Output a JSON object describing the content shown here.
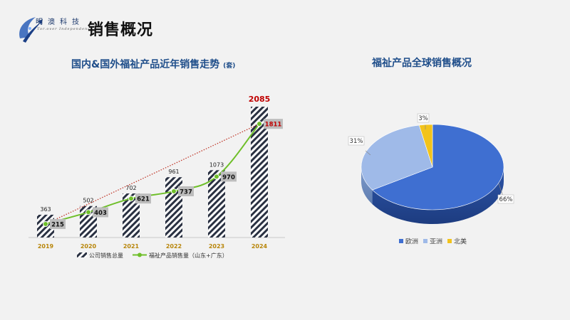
{
  "page": {
    "title": "销售概况",
    "logo": {
      "name": "明澳科技",
      "sub": "Tor.over Independence"
    }
  },
  "chart_data": [
    {
      "type": "bar",
      "title": "国内&国外福祉产品近年销售走势",
      "title_unit": "(套)",
      "categories": [
        "2019",
        "2020",
        "2021",
        "2022",
        "2023",
        "2024"
      ],
      "ylim": [
        0,
        2200
      ],
      "series": [
        {
          "name": "公司销售总量",
          "kind": "bar",
          "values": [
            363,
            502,
            702,
            961,
            1073,
            2085
          ],
          "pattern": "diagonal-stripes"
        },
        {
          "name": "福祉产品销售量（山东+广东）",
          "kind": "line",
          "color": "#6fbf2a",
          "values": [
            215,
            403,
            621,
            737,
            970,
            1811
          ]
        }
      ],
      "trendline": {
        "style": "dotted",
        "color": "#c0392b"
      },
      "highlight_color": "#c00000",
      "category_label_color": "#b8860b",
      "legend": "bottom"
    },
    {
      "type": "pie",
      "title": "福祉产品全球销售概况",
      "style": "3d",
      "slices": [
        {
          "name": "欧洲",
          "value": 66,
          "label": "66%",
          "color": "#3f6fd1"
        },
        {
          "name": "亚洲",
          "value": 31,
          "label": "31%",
          "color": "#9fbae8"
        },
        {
          "name": "北美",
          "value": 3,
          "label": "3%",
          "color": "#f2c31b"
        }
      ],
      "legend": "bottom"
    }
  ]
}
